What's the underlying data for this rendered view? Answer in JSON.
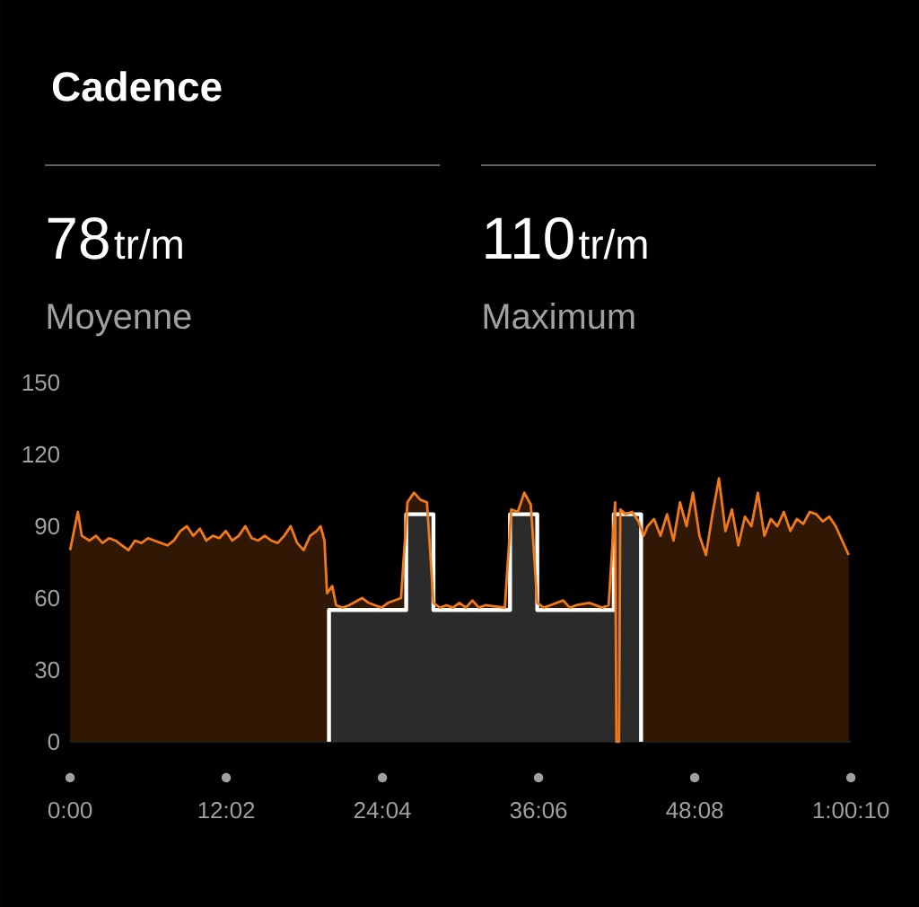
{
  "chart_data": {
    "type": "area",
    "title": "Cadence",
    "annotations": [
      "78",
      "tr/m",
      "Moyenne",
      "110",
      "tr/m",
      "Maximum"
    ],
    "xlim": [
      0,
      60.167
    ],
    "xticks": [
      {
        "value": 0,
        "label": "0:00"
      },
      {
        "value": 12.033,
        "label": "12:02"
      },
      {
        "value": 24.067,
        "label": "24:04"
      },
      {
        "value": 36.1,
        "label": "36:06"
      },
      {
        "value": 48.133,
        "label": "48:08"
      },
      {
        "value": 60.167,
        "label": "1:00:10"
      }
    ],
    "ylim": [
      0,
      150
    ],
    "yticks": [
      0,
      30,
      60,
      90,
      120,
      150
    ],
    "grid": false,
    "series": [
      {
        "color": "#f07a1a",
        "x": [
          0,
          0.3,
          0.6,
          0.9,
          1.5,
          2,
          2.5,
          3,
          3.5,
          4,
          4.5,
          5,
          5.5,
          6,
          6.5,
          7,
          7.5,
          8,
          8.5,
          9,
          9.5,
          10,
          10.5,
          11,
          11.5,
          12,
          12.5,
          13,
          13.5,
          14,
          14.5,
          15,
          15.5,
          16,
          16.5,
          17,
          17.5,
          18,
          18.5,
          19,
          19.3,
          19.6,
          19.8,
          20.2,
          20.5,
          21,
          21.5,
          22,
          22.5,
          23,
          23.5,
          24,
          24.5,
          25,
          25.5,
          26,
          26.5,
          27,
          27.5,
          28,
          28.5,
          29,
          29.5,
          30,
          30.5,
          31,
          31.5,
          32,
          32.5,
          33,
          33.5,
          34,
          34.5,
          35,
          35.5,
          36,
          36.5,
          37,
          37.5,
          38,
          38.5,
          39,
          39.5,
          40,
          40.5,
          41,
          41.5,
          42,
          42.1,
          42.3,
          42.4,
          42.8,
          43.3,
          43.8,
          44.2,
          44.5,
          45,
          45.5,
          46,
          46.5,
          47,
          47.5,
          48,
          48.5,
          49,
          49.5,
          50,
          50.5,
          51,
          51.5,
          52,
          52.5,
          53,
          53.5,
          54,
          54.5,
          55,
          55.5,
          56,
          56.5,
          57,
          57.5,
          58,
          58.5,
          59,
          59.5,
          60
        ],
        "values": [
          80,
          88,
          96,
          86,
          84,
          86,
          83,
          85,
          84,
          82,
          80,
          84,
          83,
          85,
          84,
          83,
          82,
          84,
          88,
          90,
          86,
          89,
          84,
          86,
          85,
          88,
          84,
          86,
          90,
          85,
          84,
          86,
          84,
          83,
          86,
          90,
          83,
          80,
          86,
          88,
          90,
          84,
          62,
          65,
          57,
          56,
          57,
          null,
          60,
          58,
          57,
          56,
          58,
          null,
          60,
          100,
          104,
          101,
          100,
          58,
          56,
          57,
          56,
          58,
          56,
          59,
          56,
          57,
          null,
          null,
          56,
          97,
          96,
          104,
          99,
          58,
          56,
          57,
          58,
          59,
          56,
          57,
          null,
          58,
          null,
          56,
          57,
          100,
          0,
          0,
          97,
          95,
          96,
          92,
          86,
          90,
          93,
          86,
          95,
          84,
          100,
          90,
          104,
          86,
          78,
          95,
          110,
          88,
          97,
          82,
          94,
          90,
          104,
          86,
          93,
          90,
          96,
          88,
          93,
          91,
          96,
          95,
          92,
          94,
          90,
          84,
          78
        ]
      },
      {
        "type": "step",
        "color": "#ffffff",
        "x": [
          19.95,
          19.95,
          25.9,
          28.0,
          33.9,
          36.0,
          41.9,
          44.0
        ],
        "values": [
          0,
          55,
          95,
          55,
          95,
          55,
          95,
          0
        ]
      }
    ]
  }
}
